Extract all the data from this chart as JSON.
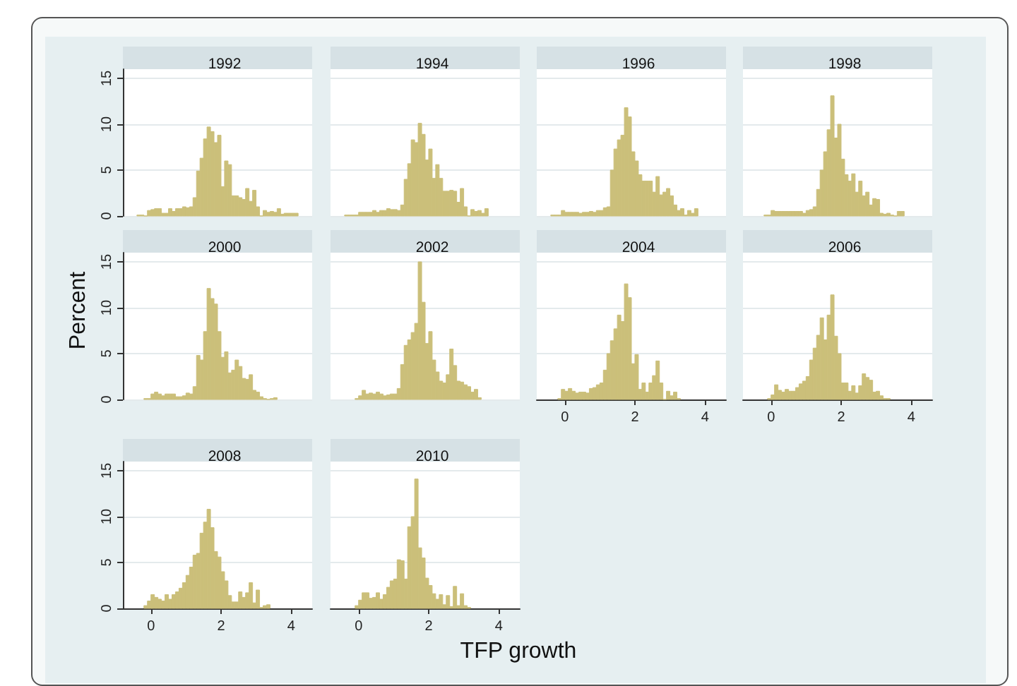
{
  "chart_data": [
    {
      "type": "histogram",
      "title": "1992",
      "color": "#cbbf7a",
      "bins": [
        -0.4,
        -0.3,
        -0.2,
        -0.1,
        0,
        0.1,
        0.2,
        0.3,
        0.4,
        0.5,
        0.6,
        0.7,
        0.8,
        0.9,
        1,
        1.1,
        1.2,
        1.3,
        1.4,
        1.5,
        1.6,
        1.7,
        1.8,
        1.9,
        2,
        2.1,
        2.2,
        2.3,
        2.4,
        2.5,
        2.6,
        2.7,
        2.8,
        2.9,
        3,
        3.1,
        3.2,
        3.3,
        3.4,
        3.5,
        3.6,
        3.7,
        3.8,
        3.9,
        4,
        4.1,
        4.2
      ],
      "values": [
        0.1,
        0.1,
        0,
        0.6,
        0.7,
        0.8,
        0.8,
        0.3,
        0.3,
        0.8,
        0.5,
        0.8,
        0.8,
        1.0,
        0.9,
        1.0,
        2.0,
        4.9,
        6.3,
        8.4,
        9.7,
        9.2,
        8.0,
        8.8,
        3.2,
        6.0,
        5.6,
        2.2,
        2.2,
        2.0,
        1.8,
        3.0,
        1.6,
        2.8,
        1.0,
        0,
        0.6,
        0.4,
        0.5,
        0.4,
        0.8,
        0.2,
        0.3,
        0.3,
        0.3,
        0.3
      ],
      "xlim": [
        -0.8,
        4.6
      ],
      "ylim": [
        0,
        16
      ],
      "xticks": [
        0,
        2,
        4
      ],
      "yticks": [
        0,
        5,
        10,
        15
      ],
      "grid": "y",
      "tick_labels": "y"
    },
    {
      "type": "histogram",
      "title": "1994",
      "color": "#cbbf7a",
      "bins": [
        -0.4,
        -0.3,
        -0.2,
        -0.1,
        0,
        0.1,
        0.2,
        0.3,
        0.4,
        0.5,
        0.6,
        0.7,
        0.8,
        0.9,
        1,
        1.1,
        1.2,
        1.3,
        1.4,
        1.5,
        1.6,
        1.7,
        1.8,
        1.9,
        2,
        2.1,
        2.2,
        2.3,
        2.4,
        2.5,
        2.6,
        2.7,
        2.8,
        2.9,
        3,
        3.1,
        3.2,
        3.3,
        3.4,
        3.5,
        3.6,
        3.7
      ],
      "values": [
        0.1,
        0.1,
        0.1,
        0.1,
        0.4,
        0.4,
        0.4,
        0.4,
        0.6,
        0.4,
        0.6,
        0.6,
        0.8,
        0.7,
        0.7,
        0.6,
        1.2,
        4.0,
        5.7,
        8.3,
        8.0,
        10.1,
        8.9,
        6.1,
        7.3,
        4.1,
        5.6,
        4.1,
        2.7,
        2.7,
        2.8,
        2.7,
        1.5,
        3.0,
        1.0,
        0,
        0.7,
        0.5,
        0.6,
        0.3,
        0.8
      ],
      "xlim": [
        -0.8,
        4.6
      ],
      "ylim": [
        0,
        16
      ],
      "xticks": [
        0,
        2,
        4
      ],
      "yticks": [
        0,
        5,
        10,
        15
      ],
      "grid": "y",
      "tick_labels": false
    },
    {
      "type": "histogram",
      "title": "1996",
      "color": "#cbbf7a",
      "bins": [
        -0.4,
        -0.3,
        -0.2,
        -0.1,
        0,
        0.1,
        0.2,
        0.3,
        0.4,
        0.5,
        0.6,
        0.7,
        0.8,
        0.9,
        1,
        1.1,
        1.2,
        1.3,
        1.4,
        1.5,
        1.6,
        1.7,
        1.8,
        1.9,
        2,
        2.1,
        2.2,
        2.3,
        2.4,
        2.5,
        2.6,
        2.7,
        2.8,
        2.9,
        3,
        3.1,
        3.2,
        3.3,
        3.4,
        3.5,
        3.6,
        3.7,
        3.8
      ],
      "values": [
        0.1,
        0.1,
        0.1,
        0.6,
        0.4,
        0.4,
        0.4,
        0.4,
        0.3,
        0.4,
        0.4,
        0.5,
        0.4,
        0.6,
        0.6,
        0.9,
        1.0,
        5.0,
        7.3,
        8.3,
        8.8,
        11.8,
        10.8,
        7.0,
        6.0,
        4.5,
        3.8,
        3.8,
        3.8,
        2.6,
        4.3,
        2.3,
        2.6,
        3.0,
        2.2,
        1.2,
        0.6,
        0.8,
        0.1,
        0.6,
        0.3,
        0.8
      ],
      "xlim": [
        -0.8,
        4.6
      ],
      "ylim": [
        0,
        16
      ],
      "xticks": [
        0,
        2,
        4
      ],
      "yticks": [
        0,
        5,
        10,
        15
      ],
      "grid": "y",
      "tick_labels": false
    },
    {
      "type": "histogram",
      "title": "1998",
      "color": "#cbbf7a",
      "bins": [
        -0.2,
        -0.1,
        0,
        0.1,
        0.2,
        0.3,
        0.4,
        0.5,
        0.6,
        0.7,
        0.8,
        0.9,
        1,
        1.1,
        1.2,
        1.3,
        1.4,
        1.5,
        1.6,
        1.7,
        1.8,
        1.9,
        2,
        2.1,
        2.2,
        2.3,
        2.4,
        2.5,
        2.6,
        2.7,
        2.8,
        2.9,
        3,
        3.1,
        3.2,
        3.3,
        3.4,
        3.5,
        3.6,
        3.7,
        3.8
      ],
      "values": [
        0.1,
        0.1,
        0.6,
        0.5,
        0.5,
        0.5,
        0.5,
        0.5,
        0.5,
        0.5,
        0.5,
        0.3,
        0.6,
        0.7,
        1.0,
        2.9,
        5.0,
        7.0,
        9.4,
        13.1,
        8.5,
        10.0,
        6.2,
        4.5,
        3.8,
        4.6,
        2.6,
        3.8,
        2.2,
        2.6,
        1.2,
        1.9,
        1.8,
        0.3,
        0.2,
        0.3,
        0.1,
        0,
        0.5,
        0.5
      ],
      "xlim": [
        -0.8,
        4.6
      ],
      "ylim": [
        0,
        16
      ],
      "xticks": [
        0,
        2,
        4
      ],
      "yticks": [
        0,
        5,
        10,
        15
      ],
      "grid": "y",
      "tick_labels": false
    },
    {
      "type": "histogram",
      "title": "2000",
      "ylabel": "Percent",
      "color": "#cbbf7a",
      "bins": [
        -0.2,
        -0.1,
        0,
        0.1,
        0.2,
        0.3,
        0.4,
        0.5,
        0.6,
        0.7,
        0.8,
        0.9,
        1,
        1.1,
        1.2,
        1.3,
        1.4,
        1.5,
        1.6,
        1.7,
        1.8,
        1.9,
        2,
        2.1,
        2.2,
        2.3,
        2.4,
        2.5,
        2.6,
        2.7,
        2.8,
        2.9,
        3,
        3.1,
        3.2,
        3.3,
        3.4,
        3.5,
        3.6
      ],
      "values": [
        0.1,
        0.1,
        0.6,
        0.8,
        0.6,
        0.4,
        0.6,
        0.6,
        0.6,
        0.3,
        0.3,
        0.4,
        0.7,
        0.6,
        1.4,
        4.8,
        4.3,
        7.4,
        12.1,
        11.0,
        10.4,
        7.4,
        4.6,
        5.2,
        2.9,
        3.2,
        4.3,
        3.6,
        2.3,
        2.2,
        2.7,
        1.0,
        0.8,
        0.3,
        0.1,
        0,
        0.1,
        0.2
      ],
      "xlim": [
        -0.8,
        4.6
      ],
      "ylim": [
        0,
        16
      ],
      "xticks": [
        0,
        2,
        4
      ],
      "yticks": [
        0,
        5,
        10,
        15
      ],
      "grid": "y",
      "tick_labels": "y"
    },
    {
      "type": "histogram",
      "title": "2002",
      "color": "#cbbf7a",
      "bins": [
        -0.1,
        0,
        0.1,
        0.2,
        0.3,
        0.4,
        0.5,
        0.6,
        0.7,
        0.8,
        0.9,
        1,
        1.1,
        1.2,
        1.3,
        1.4,
        1.5,
        1.6,
        1.7,
        1.8,
        1.9,
        2,
        2.1,
        2.2,
        2.3,
        2.4,
        2.5,
        2.6,
        2.7,
        2.8,
        2.9,
        3,
        3.1,
        3.2,
        3.3,
        3.4,
        3.5
      ],
      "values": [
        0.1,
        0.4,
        1.0,
        0.6,
        0.7,
        0.6,
        0.8,
        0.6,
        0.4,
        0.5,
        0.6,
        0.6,
        1.2,
        3.8,
        5.9,
        6.5,
        7.3,
        8.3,
        15.0,
        10.6,
        6.1,
        7.4,
        4.3,
        3.0,
        2.0,
        1.8,
        2.7,
        5.5,
        3.7,
        2.0,
        1.9,
        1.6,
        1.4,
        0.8,
        1.1,
        0.2
      ],
      "xlim": [
        -0.8,
        4.6
      ],
      "ylim": [
        0,
        16
      ],
      "xticks": [
        0,
        2,
        4
      ],
      "yticks": [
        0,
        5,
        10,
        15
      ],
      "grid": "y",
      "tick_labels": false
    },
    {
      "type": "histogram",
      "title": "2004",
      "color": "#cbbf7a",
      "bins": [
        -0.2,
        -0.1,
        0,
        0.1,
        0.2,
        0.3,
        0.4,
        0.5,
        0.6,
        0.7,
        0.8,
        0.9,
        1,
        1.1,
        1.2,
        1.3,
        1.4,
        1.5,
        1.6,
        1.7,
        1.8,
        1.9,
        2,
        2.1,
        2.2,
        2.3,
        2.4,
        2.5,
        2.6,
        2.7,
        2.8,
        2.9,
        3,
        3.1,
        3.2,
        3.3
      ],
      "values": [
        0.1,
        1.1,
        0.9,
        1.2,
        0.9,
        0.7,
        0.8,
        0.8,
        0.7,
        1.2,
        1.3,
        1.6,
        1.8,
        3.2,
        5.0,
        6.4,
        7.7,
        9.2,
        8.5,
        12.6,
        11.1,
        3.9,
        4.9,
        1.1,
        1.8,
        0.8,
        1.8,
        2.6,
        4.2,
        1.8,
        0,
        0.9,
        0.4,
        0.8,
        0.1
      ],
      "xlim": [
        -0.8,
        4.6
      ],
      "ylim": [
        0,
        16
      ],
      "xticks": [
        0,
        2,
        4
      ],
      "yticks": [
        0,
        5,
        10,
        15
      ],
      "grid": "y",
      "tick_labels": "x"
    },
    {
      "type": "histogram",
      "title": "2006",
      "color": "#cbbf7a",
      "bins": [
        -0.1,
        0,
        0.1,
        0.2,
        0.3,
        0.4,
        0.5,
        0.6,
        0.7,
        0.8,
        0.9,
        1,
        1.1,
        1.2,
        1.3,
        1.4,
        1.5,
        1.6,
        1.7,
        1.8,
        1.9,
        2,
        2.1,
        2.2,
        2.3,
        2.4,
        2.5,
        2.6,
        2.7,
        2.8,
        2.9,
        3,
        3.1,
        3.2,
        3.3,
        3.4
      ],
      "values": [
        0.1,
        0.5,
        1.6,
        1.0,
        0.8,
        1.1,
        0.9,
        0.9,
        1.3,
        1.7,
        2.0,
        2.5,
        4.3,
        5.6,
        7.0,
        8.9,
        6.5,
        9.2,
        11.4,
        6.9,
        5.0,
        1.8,
        1.8,
        0.9,
        1.5,
        0.7,
        1.5,
        2.8,
        2.4,
        2.1,
        0.8,
        0.9,
        0.4,
        0.1,
        0.1
      ],
      "xlim": [
        -0.8,
        4.6
      ],
      "ylim": [
        0,
        16
      ],
      "xticks": [
        0,
        2,
        4
      ],
      "yticks": [
        0,
        5,
        10,
        15
      ],
      "grid": "y",
      "tick_labels": "x"
    },
    {
      "type": "histogram",
      "title": "2008",
      "color": "#cbbf7a",
      "bins": [
        -0.2,
        -0.1,
        0,
        0.1,
        0.2,
        0.3,
        0.4,
        0.5,
        0.6,
        0.7,
        0.8,
        0.9,
        1,
        1.1,
        1.2,
        1.3,
        1.4,
        1.5,
        1.6,
        1.7,
        1.8,
        1.9,
        2,
        2.1,
        2.2,
        2.3,
        2.4,
        2.5,
        2.6,
        2.7,
        2.8,
        2.9,
        3,
        3.1,
        3.2,
        3.3,
        3.4
      ],
      "values": [
        0.3,
        0.8,
        1.5,
        1.2,
        1.0,
        0.8,
        1.5,
        1.0,
        1.5,
        1.8,
        2.2,
        2.8,
        3.6,
        4.5,
        5.8,
        6.0,
        8.2,
        9.4,
        10.8,
        8.8,
        6.2,
        5.6,
        4.0,
        3.0,
        1.4,
        0.7,
        0.7,
        1.8,
        1.2,
        1.7,
        2.8,
        0.6,
        2.0,
        0.1,
        0.3,
        0.4
      ],
      "xlim": [
        -0.8,
        4.6
      ],
      "ylim": [
        0,
        16
      ],
      "xticks": [
        0,
        2,
        4
      ],
      "yticks": [
        0,
        5,
        10,
        15
      ],
      "grid": "y"
    },
    {
      "type": "histogram",
      "title": "2010",
      "xlabel": "TFP growth",
      "color": "#cbbf7a",
      "bins": [
        -0.1,
        0,
        0.1,
        0.2,
        0.3,
        0.4,
        0.5,
        0.6,
        0.7,
        0.8,
        0.9,
        1,
        1.1,
        1.2,
        1.3,
        1.4,
        1.5,
        1.6,
        1.7,
        1.8,
        1.9,
        2,
        2.1,
        2.2,
        2.3,
        2.4,
        2.5,
        2.6,
        2.7,
        2.8,
        2.9,
        3,
        3.1,
        3.2
      ],
      "values": [
        0.3,
        0.9,
        1.7,
        1.7,
        1.1,
        1.2,
        1.7,
        1.0,
        1.5,
        2.3,
        3.0,
        3.2,
        5.3,
        5.2,
        3.2,
        8.9,
        10.0,
        14.1,
        6.6,
        5.5,
        3.3,
        2.5,
        1.6,
        1.0,
        1.5,
        0.4,
        1.4,
        0.2,
        2.4,
        0.3,
        1.6,
        0.3,
        0.1
      ],
      "xlim": [
        -0.8,
        4.6
      ],
      "ylim": [
        0,
        16
      ],
      "xticks": [
        0,
        2,
        4
      ],
      "yticks": [
        0,
        5,
        10,
        15
      ],
      "grid": "y",
      "tick_labels": "x"
    }
  ]
}
